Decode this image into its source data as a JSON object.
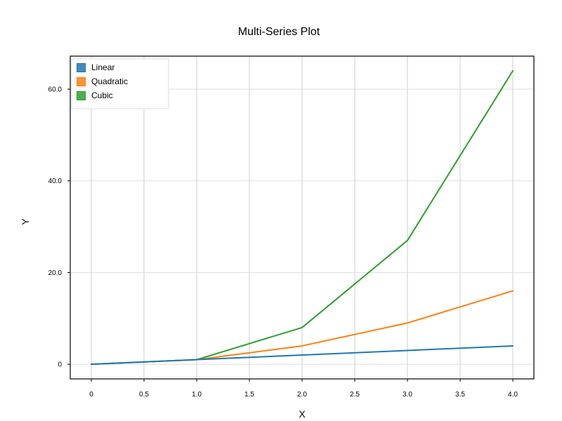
{
  "chart_data": {
    "type": "line",
    "title": "Multi-Series Plot",
    "xlabel": "X",
    "ylabel": "Y",
    "xlim": [
      -0.2,
      4.2
    ],
    "ylim": [
      -3.2,
      67.2
    ],
    "x_ticks": [
      0,
      0.5,
      1.0,
      1.5,
      2.0,
      2.5,
      3.0,
      3.5,
      4.0
    ],
    "x_tick_labels": [
      "0",
      "0.5",
      "1.0",
      "1.5",
      "2.0",
      "2.5",
      "3.0",
      "3.5",
      "4.0"
    ],
    "y_ticks": [
      0,
      20,
      40,
      60
    ],
    "y_tick_labels": [
      "0",
      "20.0",
      "40.0",
      "60.0"
    ],
    "grid": true,
    "legend_position": "top-left",
    "series": [
      {
        "name": "Linear",
        "color": "#1f77b4",
        "x": [
          0,
          1,
          2,
          3,
          4
        ],
        "y": [
          0,
          1,
          2,
          3,
          4
        ]
      },
      {
        "name": "Quadratic",
        "color": "#ff7f0e",
        "x": [
          0,
          1,
          2,
          3,
          4
        ],
        "y": [
          0,
          1,
          4,
          9,
          16
        ]
      },
      {
        "name": "Cubic",
        "color": "#2ca02c",
        "x": [
          0,
          1,
          2,
          3,
          4
        ],
        "y": [
          0,
          1,
          8,
          27,
          64
        ]
      }
    ]
  }
}
